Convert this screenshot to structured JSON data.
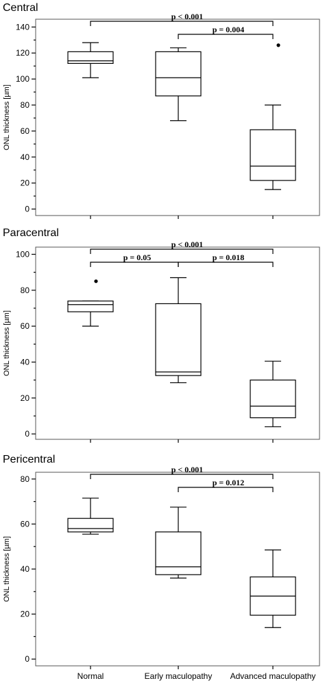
{
  "categories": [
    "Normal",
    "Early maculopathy",
    "Advanced maculopathy"
  ],
  "chart_data": [
    {
      "type": "box",
      "title": "Central",
      "ylabel": "ONL thickness [µm]",
      "ylim": [
        -5,
        146
      ],
      "yticks": [
        0,
        20,
        40,
        60,
        80,
        100,
        120,
        140
      ],
      "boxes": [
        {
          "category": "Normal",
          "min": 101,
          "q1": 112,
          "median": 114,
          "q3": 121,
          "max": 128,
          "outliers": []
        },
        {
          "category": "Early maculopathy",
          "min": 68,
          "q1": 87,
          "median": 101,
          "q3": 121,
          "max": 124,
          "outliers": []
        },
        {
          "category": "Advanced maculopathy",
          "min": 15,
          "q1": 22,
          "median": 33,
          "q3": 61,
          "max": 80,
          "outliers": [
            126
          ]
        }
      ],
      "comparisons": [
        {
          "from": "Normal",
          "to": "Advanced maculopathy",
          "label": "p < 0.001",
          "level": 1
        },
        {
          "from": "Early maculopathy",
          "to": "Advanced maculopathy",
          "label": "p = 0.004",
          "level": 0
        }
      ]
    },
    {
      "type": "box",
      "title": "Paracentral",
      "ylabel": "ONL thickness [µm]",
      "ylim": [
        -3,
        104
      ],
      "yticks": [
        0,
        20,
        40,
        60,
        80,
        100
      ],
      "boxes": [
        {
          "category": "Normal",
          "min": 60,
          "q1": 68,
          "median": 72,
          "q3": 74,
          "max": 74,
          "outliers": [
            85
          ]
        },
        {
          "category": "Early maculopathy",
          "min": 28.5,
          "q1": 32.5,
          "median": 34.5,
          "q3": 72.5,
          "max": 87,
          "outliers": []
        },
        {
          "category": "Advanced maculopathy",
          "min": 4,
          "q1": 9,
          "median": 15.5,
          "q3": 30,
          "max": 40.5,
          "outliers": []
        }
      ],
      "comparisons": [
        {
          "from": "Normal",
          "to": "Advanced maculopathy",
          "label": "p < 0.001",
          "level": 1
        },
        {
          "from": "Normal",
          "to": "Early maculopathy",
          "label": "p = 0.05",
          "level": 0
        },
        {
          "from": "Early maculopathy",
          "to": "Advanced maculopathy",
          "label": "p = 0.018",
          "level": 0
        }
      ]
    },
    {
      "type": "box",
      "title": "Pericentral",
      "ylabel": "ONL thickness [µm]",
      "ylim": [
        -3,
        83
      ],
      "yticks": [
        0,
        20,
        40,
        60,
        80
      ],
      "boxes": [
        {
          "category": "Normal",
          "min": 55.5,
          "q1": 56.5,
          "median": 58,
          "q3": 62.5,
          "max": 71.5,
          "outliers": []
        },
        {
          "category": "Early maculopathy",
          "min": 36,
          "q1": 37.5,
          "median": 41,
          "q3": 56.5,
          "max": 67.5,
          "outliers": []
        },
        {
          "category": "Advanced maculopathy",
          "min": 14,
          "q1": 19.5,
          "median": 28,
          "q3": 36.5,
          "max": 48.5,
          "outliers": []
        }
      ],
      "comparisons": [
        {
          "from": "Normal",
          "to": "Advanced maculopathy",
          "label": "p < 0.001",
          "level": 1
        },
        {
          "from": "Early maculopathy",
          "to": "Advanced maculopathy",
          "label": "p = 0.012",
          "level": 0
        }
      ]
    }
  ]
}
